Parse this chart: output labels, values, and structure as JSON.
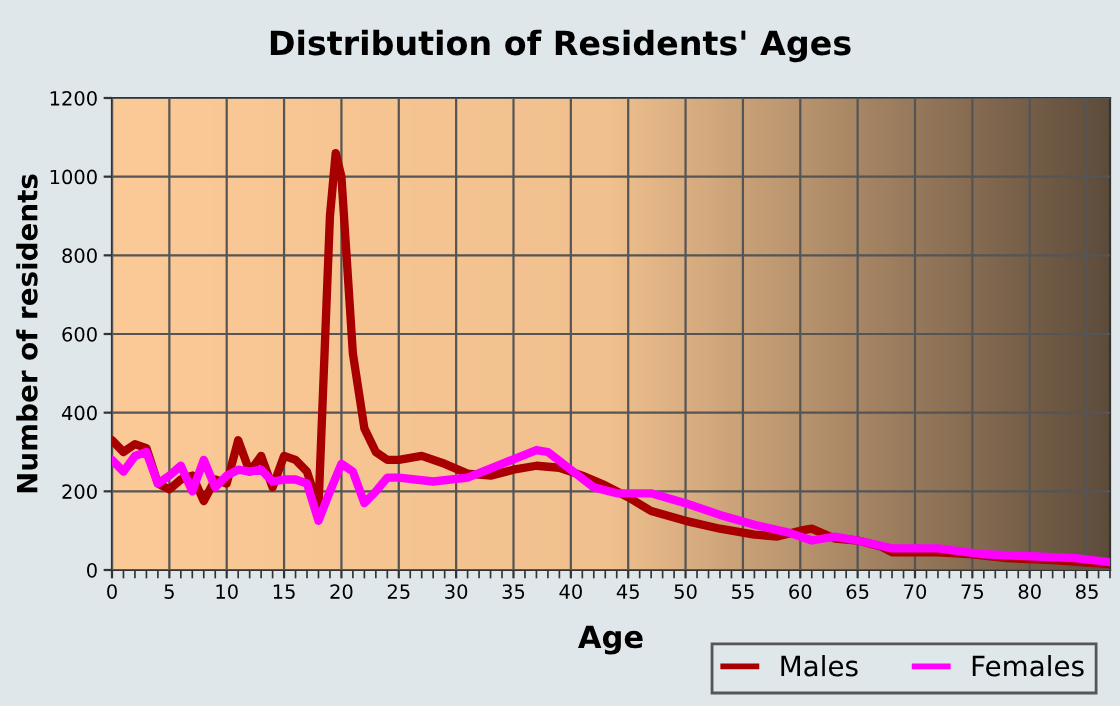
{
  "chart_data": {
    "type": "line",
    "title": "Distribution of Residents' Ages",
    "xlabel": "Age",
    "ylabel": "Number of residents",
    "xlim": [
      0,
      87
    ],
    "xticks": [
      0,
      5,
      10,
      15,
      20,
      25,
      30,
      35,
      40,
      45,
      50,
      55,
      60,
      65,
      70,
      75,
      80,
      85
    ],
    "ylim": [
      0,
      1200
    ],
    "yticks": [
      0,
      200,
      400,
      600,
      800,
      1000,
      1200
    ],
    "grid": true,
    "legend": "bottom right",
    "line_style": "solid",
    "marker": "none",
    "series": [
      {
        "name": "Males",
        "color": "#a80000",
        "x": [
          0,
          1,
          2,
          3,
          4,
          5,
          6,
          7,
          8,
          9,
          10,
          11,
          12,
          13,
          14,
          15,
          16,
          17,
          18,
          19,
          19.5,
          20,
          21,
          22,
          23,
          24,
          25,
          27,
          29,
          31,
          33,
          35,
          37,
          39,
          41,
          43,
          45,
          47,
          50,
          53,
          56,
          58,
          60,
          61,
          63,
          65,
          67,
          68,
          72,
          75,
          78,
          82,
          87
        ],
        "values": [
          330,
          300,
          320,
          310,
          220,
          205,
          230,
          240,
          175,
          230,
          220,
          330,
          250,
          290,
          210,
          290,
          280,
          250,
          160,
          900,
          1060,
          1000,
          550,
          360,
          300,
          280,
          280,
          290,
          270,
          245,
          240,
          255,
          265,
          260,
          240,
          215,
          185,
          150,
          125,
          105,
          90,
          85,
          100,
          105,
          80,
          75,
          60,
          45,
          45,
          40,
          30,
          25,
          15
        ]
      },
      {
        "name": "Females",
        "color": "#ff00ff",
        "x": [
          0,
          1,
          2,
          3,
          4,
          5,
          6,
          7,
          8,
          9,
          10,
          11,
          12,
          13,
          14,
          15,
          16,
          17,
          18,
          19,
          20,
          21,
          22,
          23,
          24,
          25,
          28,
          31,
          34,
          37,
          38,
          40,
          42,
          44,
          47,
          50,
          53,
          56,
          59,
          61,
          63,
          65,
          68,
          72,
          76,
          80,
          84,
          87
        ],
        "values": [
          280,
          250,
          290,
          300,
          220,
          240,
          265,
          200,
          280,
          210,
          240,
          255,
          250,
          255,
          225,
          230,
          230,
          220,
          125,
          200,
          270,
          250,
          170,
          200,
          235,
          235,
          225,
          235,
          270,
          305,
          300,
          255,
          210,
          195,
          195,
          170,
          140,
          115,
          95,
          75,
          85,
          75,
          55,
          55,
          40,
          35,
          30,
          20
        ]
      }
    ]
  }
}
